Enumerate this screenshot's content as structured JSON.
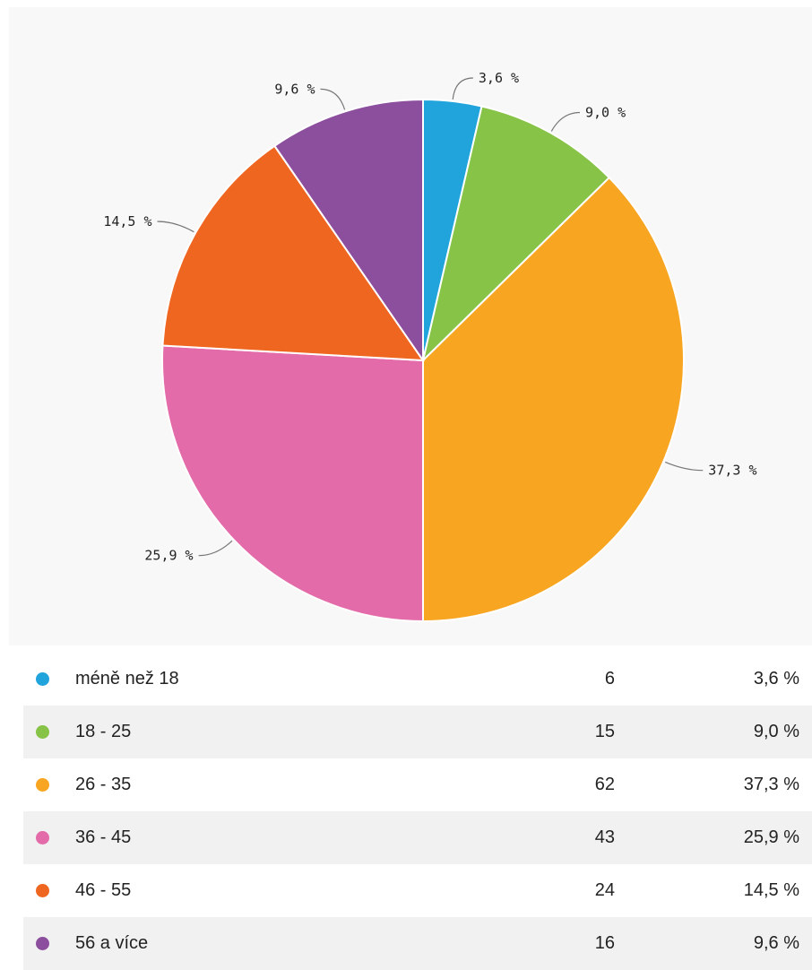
{
  "chart_data": {
    "type": "pie",
    "categories": [
      "méně než 18",
      "18 - 25",
      "26 - 35",
      "36 - 45",
      "46 - 55",
      "56 a více"
    ],
    "values": [
      6,
      15,
      62,
      43,
      24,
      16
    ],
    "percent_labels": [
      "3,6 %",
      "9,0 %",
      "37,3 %",
      "25,9 %",
      "14,5 %",
      "9,6 %"
    ],
    "colors": [
      "#21a3dc",
      "#86c346",
      "#f8a521",
      "#e36ba9",
      "#ef6621",
      "#8c4f9e"
    ],
    "start_angle": "12 o'clock",
    "direction": "clockwise",
    "legend_position": "bottom"
  },
  "legend": {
    "rows": [
      {
        "label": "méně než 18",
        "count": "6",
        "percent": "3,6 %",
        "color": "#21a3dc"
      },
      {
        "label": "18 - 25",
        "count": "15",
        "percent": "9,0 %",
        "color": "#86c346"
      },
      {
        "label": "26 - 35",
        "count": "62",
        "percent": "37,3 %",
        "color": "#f8a521"
      },
      {
        "label": "36 - 45",
        "count": "43",
        "percent": "25,9 %",
        "color": "#e36ba9"
      },
      {
        "label": "46 - 55",
        "count": "24",
        "percent": "14,5 %",
        "color": "#ef6621"
      },
      {
        "label": "56 a více",
        "count": "16",
        "percent": "9,6 %",
        "color": "#8c4f9e"
      }
    ]
  }
}
